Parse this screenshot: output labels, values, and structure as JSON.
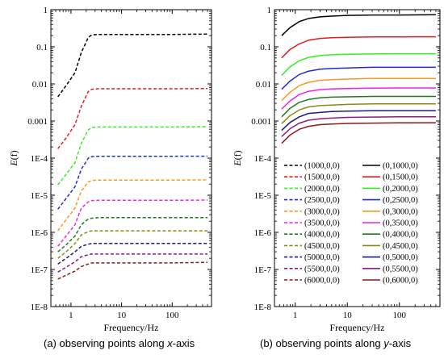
{
  "chart_data": [
    {
      "type": "line",
      "id": "a",
      "xlabel": "Frequency/Hz",
      "ylabel_italic": "E",
      "ylabel_rest": "(f)",
      "xscale": "log",
      "yscale": "log",
      "xlim": [
        0.4,
        600
      ],
      "ylim": [
        1e-08,
        1
      ],
      "x_ticks": [
        {
          "value": 1,
          "label": "1"
        },
        {
          "value": 10,
          "label": "10"
        },
        {
          "value": 100,
          "label": "100"
        }
      ],
      "y_ticks": [
        {
          "value": 1,
          "label": "1"
        },
        {
          "value": 0.1,
          "label": "0.1"
        },
        {
          "value": 0.01,
          "label": "0.01"
        },
        {
          "value": 0.001,
          "label": "0.001"
        },
        {
          "value": 0.0001,
          "label": "1E-4"
        },
        {
          "value": 1e-05,
          "label": "1E-5"
        },
        {
          "value": 1e-06,
          "label": "1E-6"
        },
        {
          "value": 1e-07,
          "label": "1E-7"
        },
        {
          "value": 1e-08,
          "label": "1E-8"
        }
      ],
      "x": [
        0.55,
        0.8,
        1.2,
        1.6,
        2.2,
        2.6,
        3.5,
        5,
        10,
        30,
        100,
        500
      ],
      "series": [
        {
          "color": "#000000",
          "style": "dashed",
          "values": [
            0.0045,
            0.009,
            0.02,
            0.07,
            0.18,
            0.21,
            0.215,
            0.215,
            0.215,
            0.215,
            0.215,
            0.22
          ]
        },
        {
          "color": "#e8191b",
          "style": "dashed",
          "values": [
            0.00018,
            0.00035,
            0.0008,
            0.0025,
            0.0062,
            0.0072,
            0.0074,
            0.0074,
            0.0074,
            0.0074,
            0.0074,
            0.0075
          ]
        },
        {
          "color": "#33ee22",
          "style": "dashed",
          "values": [
            1.9e-05,
            3.7e-05,
            7.5e-05,
            0.00025,
            0.00058,
            0.00067,
            0.00069,
            0.00069,
            0.00069,
            0.00069,
            0.00069,
            0.0007
          ]
        },
        {
          "color": "#1f2bd8",
          "style": "dashed",
          "values": [
            4.2e-06,
            8.2e-06,
            1.7e-05,
            5e-05,
            0.0001,
            0.00011,
            0.000112,
            0.000112,
            0.000112,
            0.000112,
            0.000112,
            0.000113
          ]
        },
        {
          "color": "#f59a23",
          "style": "dashed",
          "values": [
            1.1e-06,
            2.2e-06,
            4.5e-06,
            1.3e-05,
            2.3e-05,
            2.5e-05,
            2.55e-05,
            2.55e-05,
            2.55e-05,
            2.55e-05,
            2.55e-05,
            2.6e-05
          ]
        },
        {
          "color": "#f020f0",
          "style": "dashed",
          "values": [
            4.2e-07,
            8e-07,
            1.6e-06,
            4.5e-06,
            6.6e-06,
            7.2e-06,
            7.3e-06,
            7.3e-06,
            7.3e-06,
            7.3e-06,
            7.3e-06,
            7.4e-06
          ]
        },
        {
          "color": "#1e7a1e",
          "style": "dashed",
          "values": [
            3e-07,
            4.6e-07,
            8e-07,
            1.6e-06,
            2.3e-06,
            2.4e-06,
            2.5e-06,
            2.5e-06,
            2.5e-06,
            2.5e-06,
            2.5e-06,
            2.5e-06
          ]
        },
        {
          "color": "#8a8a10",
          "style": "dashed",
          "values": [
            2e-07,
            3e-07,
            5e-07,
            8.5e-07,
            1.05e-06,
            1.1e-06,
            1.1e-06,
            1.1e-06,
            1.1e-06,
            1.1e-06,
            1.1e-06,
            1.1e-06
          ]
        },
        {
          "color": "#1a1a8c",
          "style": "dashed",
          "values": [
            1.4e-07,
            2e-07,
            3e-07,
            4.2e-07,
            4.8e-07,
            5e-07,
            5e-07,
            5e-07,
            5e-07,
            5e-07,
            5e-07,
            5e-07
          ]
        },
        {
          "color": "#8b1a8b",
          "style": "dashed",
          "values": [
            8.5e-08,
            1.15e-07,
            1.6e-07,
            2.2e-07,
            2.5e-07,
            2.6e-07,
            2.6e-07,
            2.6e-07,
            2.6e-07,
            2.6e-07,
            2.6e-07,
            2.6e-07
          ]
        },
        {
          "color": "#8b1a1a",
          "style": "dashed",
          "values": [
            5.5e-08,
            7e-08,
            9e-08,
            1.2e-07,
            1.4e-07,
            1.5e-07,
            1.5e-07,
            1.5e-07,
            1.5e-07,
            1.5e-07,
            1.5e-07,
            1.55e-07
          ]
        }
      ]
    },
    {
      "type": "line",
      "id": "b",
      "xlabel": "Frequency/Hz",
      "ylabel_italic": "E",
      "ylabel_rest": "(f)",
      "xscale": "log",
      "yscale": "log",
      "xlim": [
        0.4,
        600
      ],
      "ylim": [
        1e-08,
        1
      ],
      "legend": "lower-center",
      "x_ticks": [
        {
          "value": 1,
          "label": "1"
        },
        {
          "value": 10,
          "label": "10"
        },
        {
          "value": 100,
          "label": "100"
        }
      ],
      "y_ticks": [
        {
          "value": 1,
          "label": "1"
        },
        {
          "value": 0.1,
          "label": "0.1"
        },
        {
          "value": 0.01,
          "label": "0.01"
        },
        {
          "value": 0.001,
          "label": "0.001"
        },
        {
          "value": 0.0001,
          "label": "1E-4"
        },
        {
          "value": 1e-05,
          "label": "1E-5"
        },
        {
          "value": 1e-06,
          "label": "1E-6"
        },
        {
          "value": 1e-07,
          "label": "1E-7"
        },
        {
          "value": 1e-08,
          "label": "1E-8"
        }
      ],
      "x": [
        0.55,
        0.8,
        1.2,
        1.8,
        3,
        5,
        10,
        30,
        100,
        500
      ],
      "series": [
        {
          "name": "(0,1000,0)",
          "color": "#000000",
          "style": "solid",
          "values": [
            0.2,
            0.33,
            0.48,
            0.58,
            0.64,
            0.67,
            0.7,
            0.72,
            0.72,
            0.73
          ]
        },
        {
          "name": "(0,1500,0)",
          "color": "#e8191b",
          "style": "solid",
          "values": [
            0.05,
            0.085,
            0.12,
            0.15,
            0.168,
            0.175,
            0.18,
            0.185,
            0.185,
            0.186
          ]
        },
        {
          "name": "(0,2000,0)",
          "color": "#33ee22",
          "style": "solid",
          "values": [
            0.017,
            0.029,
            0.042,
            0.052,
            0.058,
            0.061,
            0.063,
            0.064,
            0.065,
            0.065
          ]
        },
        {
          "name": "(0,2500,0)",
          "color": "#1f2bd8",
          "style": "solid",
          "values": [
            0.0072,
            0.012,
            0.018,
            0.022,
            0.025,
            0.026,
            0.027,
            0.028,
            0.028,
            0.028
          ]
        },
        {
          "name": "(0,3000,0)",
          "color": "#f59a23",
          "style": "solid",
          "values": [
            0.0036,
            0.006,
            0.009,
            0.011,
            0.0125,
            0.013,
            0.0135,
            0.014,
            0.014,
            0.014
          ]
        },
        {
          "name": "(0,3500,0)",
          "color": "#f020f0",
          "style": "solid",
          "values": [
            0.0021,
            0.0035,
            0.0052,
            0.0063,
            0.007,
            0.0073,
            0.0075,
            0.0077,
            0.0078,
            0.0078
          ]
        },
        {
          "name": "(0,4000,0)",
          "color": "#1e7a1e",
          "style": "solid",
          "values": [
            0.0013,
            0.0022,
            0.0032,
            0.0038,
            0.0042,
            0.0044,
            0.0045,
            0.0046,
            0.0046,
            0.0046
          ]
        },
        {
          "name": "(0,4500,0)",
          "color": "#8a8a10",
          "style": "solid",
          "values": [
            0.00085,
            0.0014,
            0.002,
            0.0024,
            0.0026,
            0.0027,
            0.0028,
            0.0029,
            0.0029,
            0.0029
          ]
        },
        {
          "name": "(0,5000,0)",
          "color": "#1a1a8c",
          "style": "solid",
          "values": [
            0.00056,
            0.00092,
            0.0013,
            0.0016,
            0.0017,
            0.0018,
            0.00185,
            0.0019,
            0.0019,
            0.0019
          ]
        },
        {
          "name": "(0,5500,0)",
          "color": "#8b1a8b",
          "style": "solid",
          "values": [
            0.00038,
            0.00062,
            0.00088,
            0.00105,
            0.00115,
            0.0012,
            0.00125,
            0.00128,
            0.0013,
            0.0013
          ]
        },
        {
          "name": "(0,6000,0)",
          "color": "#8b1a1a",
          "style": "solid",
          "values": [
            0.00025,
            0.00042,
            0.0006,
            0.00072,
            0.0008,
            0.00083,
            0.00086,
            0.00088,
            0.00089,
            0.0009
          ]
        }
      ],
      "legend_dashed_labels": [
        "(1000,0,0)",
        "(1500,0,0)",
        "(2000,0,0)",
        "(2500,0,0)",
        "(3000,0,0)",
        "(3500,0,0)",
        "(4000,0,0)",
        "(4500,0,0)",
        "(5000,0,0)",
        "(5500,0,0)",
        "(6000,0,0)"
      ]
    }
  ],
  "captions": {
    "a": {
      "pre": "(a) observing points along ",
      "axis": "x",
      "post": "-axis"
    },
    "b": {
      "pre": "(b) observing points along ",
      "axis": "y",
      "post": "-axis"
    }
  }
}
